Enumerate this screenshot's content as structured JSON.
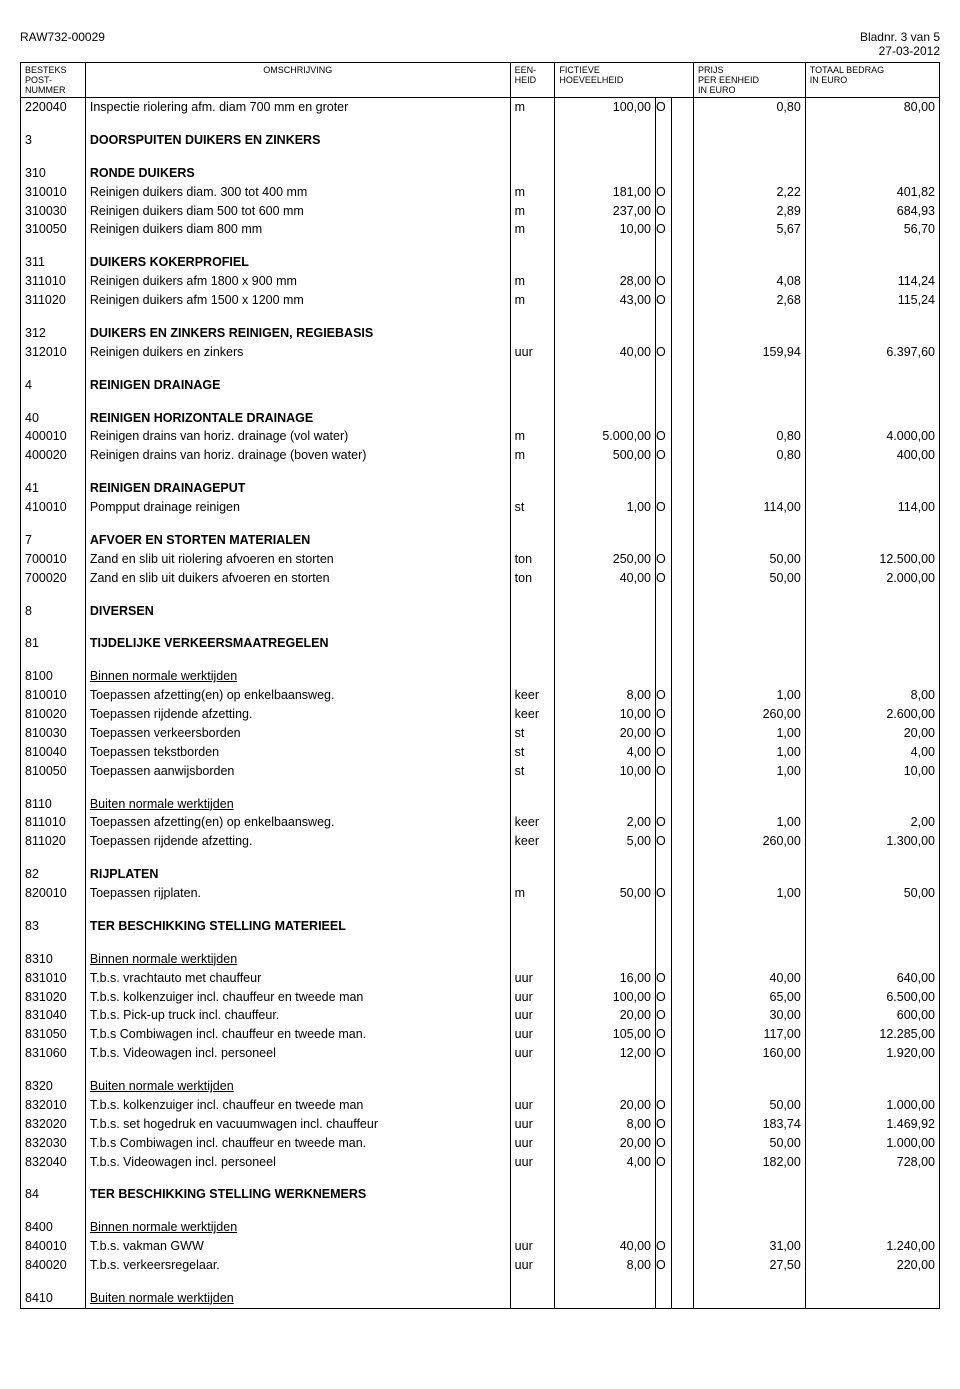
{
  "header": {
    "doc_id": "RAW732-00029",
    "page_label": "Bladnr. 3 van 5",
    "date": "27-03-2012"
  },
  "columns": {
    "code": "BESTEKS\nPOST-\nNUMMER",
    "desc": "OMSCHRIJVING",
    "unit": "EEN-\nHEID",
    "qty": "FICTIEVE\nHOEVEELHEID",
    "price": "PRIJS\nPER EENHEID\nIN EURO",
    "total": "TOTAAL BEDRAG\nIN EURO"
  },
  "rows": [
    {
      "type": "item",
      "code": "220040",
      "desc": "Inspectie riolering afm. diam 700 mm en groter",
      "unit": "m",
      "qty": "100,00",
      "flag": "O",
      "price": "0,80",
      "total": "80,00"
    },
    {
      "type": "spacer"
    },
    {
      "type": "section",
      "code": "3",
      "desc": "DOORSPUITEN DUIKERS EN ZINKERS"
    },
    {
      "type": "spacer"
    },
    {
      "type": "section",
      "code": "310",
      "desc": "RONDE DUIKERS"
    },
    {
      "type": "item",
      "code": "310010",
      "desc": "Reinigen duikers diam. 300 tot 400 mm",
      "unit": "m",
      "qty": "181,00",
      "flag": "O",
      "price": "2,22",
      "total": "401,82"
    },
    {
      "type": "item",
      "code": "310030",
      "desc": "Reinigen duikers diam 500 tot 600 mm",
      "unit": "m",
      "qty": "237,00",
      "flag": "O",
      "price": "2,89",
      "total": "684,93"
    },
    {
      "type": "item",
      "code": "310050",
      "desc": "Reinigen duikers diam 800 mm",
      "unit": "m",
      "qty": "10,00",
      "flag": "O",
      "price": "5,67",
      "total": "56,70"
    },
    {
      "type": "spacer"
    },
    {
      "type": "section",
      "code": "311",
      "desc": "DUIKERS KOKERPROFIEL"
    },
    {
      "type": "item",
      "code": "311010",
      "desc": "Reinigen duikers afm 1800 x 900 mm",
      "unit": "m",
      "qty": "28,00",
      "flag": "O",
      "price": "4,08",
      "total": "114,24"
    },
    {
      "type": "item",
      "code": "311020",
      "desc": "Reinigen duikers afm 1500 x 1200 mm",
      "unit": "m",
      "qty": "43,00",
      "flag": "O",
      "price": "2,68",
      "total": "115,24"
    },
    {
      "type": "spacer"
    },
    {
      "type": "section",
      "code": "312",
      "desc": "DUIKERS EN ZINKERS REINIGEN, REGIEBASIS"
    },
    {
      "type": "item",
      "code": "312010",
      "desc": "Reinigen duikers en zinkers",
      "unit": "uur",
      "qty": "40,00",
      "flag": "O",
      "price": "159,94",
      "total": "6.397,60"
    },
    {
      "type": "spacer"
    },
    {
      "type": "section",
      "code": "4",
      "desc": "REINIGEN DRAINAGE"
    },
    {
      "type": "spacer"
    },
    {
      "type": "section",
      "code": "40",
      "desc": "REINIGEN HORIZONTALE DRAINAGE"
    },
    {
      "type": "item",
      "code": "400010",
      "desc": "Reinigen drains van horiz. drainage (vol water)",
      "unit": "m",
      "qty": "5.000,00",
      "flag": "O",
      "price": "0,80",
      "total": "4.000,00"
    },
    {
      "type": "item",
      "code": "400020",
      "desc": "Reinigen drains van horiz. drainage (boven water)",
      "unit": "m",
      "qty": "500,00",
      "flag": "O",
      "price": "0,80",
      "total": "400,00"
    },
    {
      "type": "spacer"
    },
    {
      "type": "section",
      "code": "41",
      "desc": "REINIGEN DRAINAGEPUT"
    },
    {
      "type": "item",
      "code": "410010",
      "desc": "Pompput drainage reinigen",
      "unit": "st",
      "qty": "1,00",
      "flag": "O",
      "price": "114,00",
      "total": "114,00"
    },
    {
      "type": "spacer"
    },
    {
      "type": "section",
      "code": "7",
      "desc": "AFVOER EN STORTEN MATERIALEN"
    },
    {
      "type": "item",
      "code": "700010",
      "desc": "Zand en slib uit riolering afvoeren en storten",
      "unit": "ton",
      "qty": "250,00",
      "flag": "O",
      "price": "50,00",
      "total": "12.500,00"
    },
    {
      "type": "item",
      "code": "700020",
      "desc": "Zand en slib uit duikers afvoeren en storten",
      "unit": "ton",
      "qty": "40,00",
      "flag": "O",
      "price": "50,00",
      "total": "2.000,00"
    },
    {
      "type": "spacer"
    },
    {
      "type": "section",
      "code": "8",
      "desc": "DIVERSEN"
    },
    {
      "type": "spacer"
    },
    {
      "type": "section",
      "code": "81",
      "desc": "TIJDELIJKE VERKEERSMAATREGELEN"
    },
    {
      "type": "spacer"
    },
    {
      "type": "subheader",
      "code": "8100",
      "desc": "Binnen normale werktijden"
    },
    {
      "type": "item",
      "code": "810010",
      "desc": "Toepassen afzetting(en) op enkelbaansweg.",
      "unit": "keer",
      "qty": "8,00",
      "flag": "O",
      "price": "1,00",
      "total": "8,00"
    },
    {
      "type": "item",
      "code": "810020",
      "desc": "Toepassen rijdende afzetting.",
      "unit": "keer",
      "qty": "10,00",
      "flag": "O",
      "price": "260,00",
      "total": "2.600,00"
    },
    {
      "type": "item",
      "code": "810030",
      "desc": "Toepassen verkeersborden",
      "unit": "st",
      "qty": "20,00",
      "flag": "O",
      "price": "1,00",
      "total": "20,00"
    },
    {
      "type": "item",
      "code": "810040",
      "desc": "Toepassen tekstborden",
      "unit": "st",
      "qty": "4,00",
      "flag": "O",
      "price": "1,00",
      "total": "4,00"
    },
    {
      "type": "item",
      "code": "810050",
      "desc": "Toepassen aanwijsborden",
      "unit": "st",
      "qty": "10,00",
      "flag": "O",
      "price": "1,00",
      "total": "10,00"
    },
    {
      "type": "spacer"
    },
    {
      "type": "subheader",
      "code": "8110",
      "desc": "Buiten normale werktijden"
    },
    {
      "type": "item",
      "code": "811010",
      "desc": "Toepassen afzetting(en) op enkelbaansweg.",
      "unit": "keer",
      "qty": "2,00",
      "flag": "O",
      "price": "1,00",
      "total": "2,00"
    },
    {
      "type": "item",
      "code": "811020",
      "desc": "Toepassen rijdende afzetting.",
      "unit": "keer",
      "qty": "5,00",
      "flag": "O",
      "price": "260,00",
      "total": "1.300,00"
    },
    {
      "type": "spacer"
    },
    {
      "type": "section",
      "code": "82",
      "desc": "RIJPLATEN"
    },
    {
      "type": "item",
      "code": "820010",
      "desc": "Toepassen rijplaten.",
      "unit": "m",
      "qty": "50,00",
      "flag": "O",
      "price": "1,00",
      "total": "50,00"
    },
    {
      "type": "spacer"
    },
    {
      "type": "section",
      "code": "83",
      "desc": "TER BESCHIKKING STELLING MATERIEEL"
    },
    {
      "type": "spacer"
    },
    {
      "type": "subheader",
      "code": "8310",
      "desc": "Binnen normale werktijden"
    },
    {
      "type": "item",
      "code": "831010",
      "desc": "T.b.s. vrachtauto met chauffeur",
      "unit": "uur",
      "qty": "16,00",
      "flag": "O",
      "price": "40,00",
      "total": "640,00"
    },
    {
      "type": "item",
      "code": "831020",
      "desc": "T.b.s. kolkenzuiger incl. chauffeur en tweede man",
      "unit": "uur",
      "qty": "100,00",
      "flag": "O",
      "price": "65,00",
      "total": "6.500,00"
    },
    {
      "type": "item",
      "code": "831040",
      "desc": "T.b.s. Pick-up truck incl. chauffeur.",
      "unit": "uur",
      "qty": "20,00",
      "flag": "O",
      "price": "30,00",
      "total": "600,00"
    },
    {
      "type": "item",
      "code": "831050",
      "desc": "T.b.s Combiwagen incl. chauffeur en tweede man.",
      "unit": "uur",
      "qty": "105,00",
      "flag": "O",
      "price": "117,00",
      "total": "12.285,00"
    },
    {
      "type": "item",
      "code": "831060",
      "desc": "T.b.s. Videowagen incl. personeel",
      "unit": "uur",
      "qty": "12,00",
      "flag": "O",
      "price": "160,00",
      "total": "1.920,00"
    },
    {
      "type": "spacer"
    },
    {
      "type": "subheader",
      "code": "8320",
      "desc": "Buiten normale werktijden"
    },
    {
      "type": "item",
      "code": "832010",
      "desc": "T.b.s. kolkenzuiger incl. chauffeur en tweede man",
      "unit": "uur",
      "qty": "20,00",
      "flag": "O",
      "price": "50,00",
      "total": "1.000,00"
    },
    {
      "type": "item",
      "code": "832020",
      "desc": "T.b.s. set hogedruk en vacuumwagen incl. chauffeur",
      "unit": "uur",
      "qty": "8,00",
      "flag": "O",
      "price": "183,74",
      "total": "1.469,92"
    },
    {
      "type": "item",
      "code": "832030",
      "desc": "T.b.s Combiwagen incl. chauffeur en tweede man.",
      "unit": "uur",
      "qty": "20,00",
      "flag": "O",
      "price": "50,00",
      "total": "1.000,00"
    },
    {
      "type": "item",
      "code": "832040",
      "desc": "T.b.s. Videowagen incl. personeel",
      "unit": "uur",
      "qty": "4,00",
      "flag": "O",
      "price": "182,00",
      "total": "728,00"
    },
    {
      "type": "spacer"
    },
    {
      "type": "section",
      "code": "84",
      "desc": "TER BESCHIKKING STELLING WERKNEMERS"
    },
    {
      "type": "spacer"
    },
    {
      "type": "subheader",
      "code": "8400",
      "desc": "Binnen normale werktijden"
    },
    {
      "type": "item",
      "code": "840010",
      "desc": "T.b.s. vakman GWW",
      "unit": "uur",
      "qty": "40,00",
      "flag": "O",
      "price": "31,00",
      "total": "1.240,00"
    },
    {
      "type": "item",
      "code": "840020",
      "desc": "T.b.s. verkeersregelaar.",
      "unit": "uur",
      "qty": "8,00",
      "flag": "O",
      "price": "27,50",
      "total": "220,00"
    },
    {
      "type": "spacer"
    },
    {
      "type": "subheader",
      "code": "8410",
      "desc": "Buiten normale werktijden"
    }
  ]
}
